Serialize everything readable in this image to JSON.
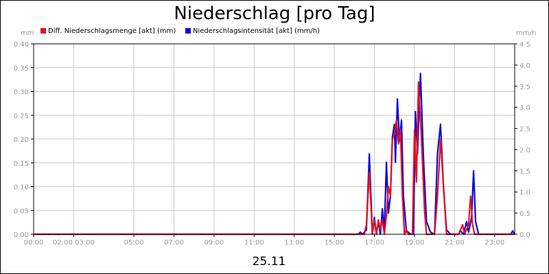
{
  "chart_data": {
    "type": "line",
    "title": "Niederschlag [pro Tag]",
    "date_label": "25.11",
    "left_unit": "mm",
    "right_unit": "mm/h",
    "ylim_left": [
      0,
      0.4
    ],
    "ylim_right": [
      0,
      4.5
    ],
    "y_ticks_left": [
      "0.00",
      "0.05",
      "0.10",
      "0.15",
      "0.20",
      "0.25",
      "0.30",
      "0.35",
      "0.40"
    ],
    "y_ticks_right": [
      "0.0",
      "0.5",
      "1.0",
      "1.5",
      "2.0",
      "2.5",
      "3.0",
      "3.5",
      "4.0",
      "4.5"
    ],
    "x_range_hours": [
      0,
      24
    ],
    "x_tick_hours": [
      0,
      2,
      5,
      7,
      9,
      11,
      13,
      15,
      17,
      19,
      21,
      23
    ],
    "x_tick_labels": [
      "00:00",
      "02:00 03:00",
      "05:00",
      "07:00",
      "09:00",
      "11:00",
      "13:00",
      "15:00",
      "17:00",
      "19:00",
      "21:00",
      "23:00"
    ],
    "grid": true,
    "legend_position": "top-left",
    "series": [
      {
        "name": "Diff. Niederschlagsmenge [akt] (mm)",
        "color": "#e8101c",
        "axis": "left",
        "points": [
          [
            0,
            0
          ],
          [
            16.5,
            0
          ],
          [
            16.6,
            0.02
          ],
          [
            16.75,
            0.13
          ],
          [
            16.9,
            0
          ],
          [
            17.0,
            0.03
          ],
          [
            17.1,
            0.0
          ],
          [
            17.2,
            0.03
          ],
          [
            17.3,
            0.01
          ],
          [
            17.4,
            0.03
          ],
          [
            17.5,
            0.0
          ],
          [
            17.6,
            0.04
          ],
          [
            17.7,
            0.1
          ],
          [
            17.8,
            0.08
          ],
          [
            17.9,
            0.2
          ],
          [
            18.0,
            0.21
          ],
          [
            18.1,
            0.24
          ],
          [
            18.2,
            0.19
          ],
          [
            18.3,
            0.22
          ],
          [
            18.4,
            0.08
          ],
          [
            18.5,
            0.0
          ],
          [
            18.6,
            0.01
          ],
          [
            18.7,
            0.0
          ],
          [
            18.9,
            0.0
          ],
          [
            19.0,
            0.22
          ],
          [
            19.1,
            0.11
          ],
          [
            19.2,
            0.32
          ],
          [
            19.35,
            0.2
          ],
          [
            19.5,
            0.05
          ],
          [
            19.6,
            0.0
          ],
          [
            20.0,
            0.0
          ],
          [
            20.15,
            0.08
          ],
          [
            20.3,
            0.2
          ],
          [
            20.45,
            0.1
          ],
          [
            20.6,
            0.0
          ],
          [
            21.0,
            0.0
          ],
          [
            21.2,
            0.0
          ],
          [
            21.4,
            0.02
          ],
          [
            21.5,
            0.0
          ],
          [
            21.7,
            0.02
          ],
          [
            21.8,
            0.08
          ],
          [
            21.9,
            0.02
          ],
          [
            22.0,
            0.0
          ],
          [
            24.0,
            0.0
          ]
        ]
      },
      {
        "name": "Niederschlagsintensität [akt] (mm/h)",
        "color": "#0a0ad8",
        "axis": "right",
        "points": [
          [
            0,
            0
          ],
          [
            16.2,
            0
          ],
          [
            16.3,
            0.05
          ],
          [
            16.4,
            0
          ],
          [
            16.6,
            0.1
          ],
          [
            16.75,
            1.9
          ],
          [
            16.9,
            0
          ],
          [
            17.0,
            0.4
          ],
          [
            17.1,
            0.0
          ],
          [
            17.2,
            0.3
          ],
          [
            17.3,
            0.0
          ],
          [
            17.4,
            0.6
          ],
          [
            17.5,
            0.1
          ],
          [
            17.6,
            1.7
          ],
          [
            17.7,
            0.5
          ],
          [
            17.8,
            0.9
          ],
          [
            17.9,
            2.3
          ],
          [
            18.0,
            2.6
          ],
          [
            18.05,
            1.7
          ],
          [
            18.15,
            3.2
          ],
          [
            18.25,
            2.2
          ],
          [
            18.35,
            2.7
          ],
          [
            18.45,
            0.9
          ],
          [
            18.6,
            0.05
          ],
          [
            18.7,
            0.05
          ],
          [
            18.8,
            0.0
          ],
          [
            18.95,
            0.0
          ],
          [
            19.05,
            2.9
          ],
          [
            19.15,
            1.9
          ],
          [
            19.3,
            3.8
          ],
          [
            19.45,
            1.8
          ],
          [
            19.6,
            0.3
          ],
          [
            19.8,
            0.05
          ],
          [
            20.0,
            0.0
          ],
          [
            20.15,
            1.9
          ],
          [
            20.3,
            2.6
          ],
          [
            20.45,
            1.1
          ],
          [
            20.6,
            0.1
          ],
          [
            20.8,
            0.0
          ],
          [
            21.2,
            0.0
          ],
          [
            21.3,
            0.08
          ],
          [
            21.45,
            0.0
          ],
          [
            21.6,
            0.3
          ],
          [
            21.7,
            0.05
          ],
          [
            21.85,
            0.4
          ],
          [
            21.95,
            1.5
          ],
          [
            22.05,
            0.3
          ],
          [
            22.2,
            0.0
          ],
          [
            23.8,
            0.0
          ],
          [
            23.9,
            0.08
          ],
          [
            24.0,
            0.0
          ]
        ]
      }
    ]
  }
}
